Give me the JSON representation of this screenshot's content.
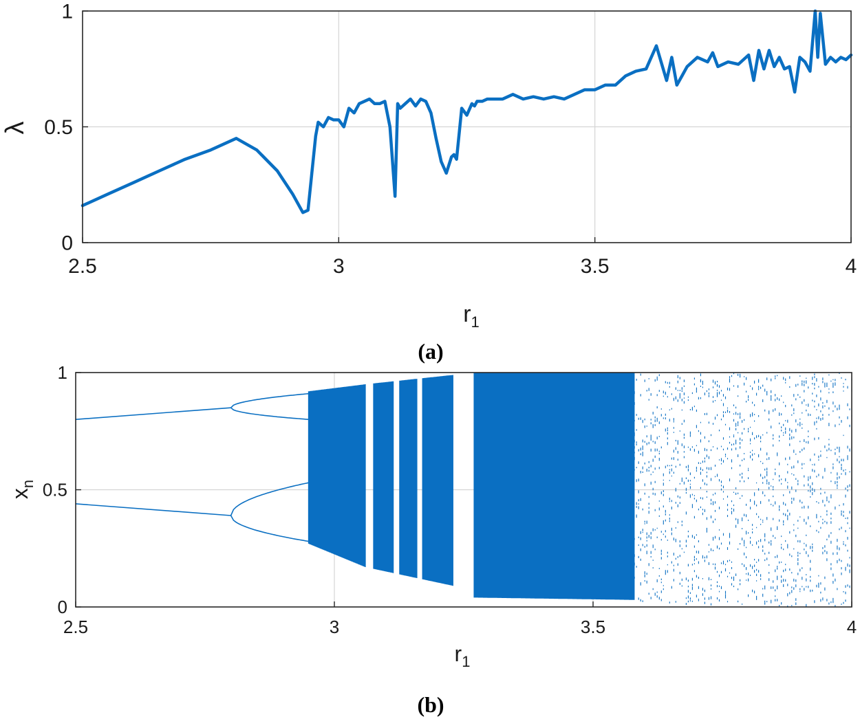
{
  "chart_data": [
    {
      "panel": "(a)",
      "type": "line",
      "xlabel": "r",
      "xlabel_sub": "1",
      "ylabel": "λ",
      "xlim": [
        2.5,
        4
      ],
      "ylim": [
        0,
        1
      ],
      "xticks": [
        2.5,
        3,
        3.5,
        4
      ],
      "xtick_labels": [
        "2.5",
        "3",
        "3.5",
        "4"
      ],
      "yticks": [
        0,
        0.5,
        1
      ],
      "ytick_labels": [
        "0",
        "0.5",
        "1"
      ],
      "grid": true,
      "color": "#0a6fc2",
      "series": [
        {
          "x": [
            2.5,
            2.55,
            2.6,
            2.65,
            2.7,
            2.75,
            2.8,
            2.84,
            2.88,
            2.91,
            2.93,
            2.94,
            2.955,
            2.96,
            2.97,
            2.98,
            2.99,
            3.0,
            3.01,
            3.02,
            3.03,
            3.04,
            3.05,
            3.06,
            3.07,
            3.08,
            3.09,
            3.1,
            3.11,
            3.115,
            3.12,
            3.13,
            3.14,
            3.15,
            3.16,
            3.17,
            3.18,
            3.19,
            3.2,
            3.21,
            3.22,
            3.225,
            3.23,
            3.24,
            3.25,
            3.26,
            3.265,
            3.27,
            3.28,
            3.29,
            3.3,
            3.32,
            3.34,
            3.36,
            3.38,
            3.4,
            3.42,
            3.44,
            3.46,
            3.48,
            3.5,
            3.52,
            3.54,
            3.56,
            3.58,
            3.6,
            3.62,
            3.64,
            3.65,
            3.66,
            3.67,
            3.68,
            3.7,
            3.72,
            3.73,
            3.74,
            3.76,
            3.78,
            3.8,
            3.81,
            3.82,
            3.83,
            3.84,
            3.85,
            3.86,
            3.87,
            3.88,
            3.89,
            3.9,
            3.91,
            3.92,
            3.93,
            3.935,
            3.94,
            3.95,
            3.96,
            3.97,
            3.98,
            3.99,
            4.0
          ],
          "y": [
            0.16,
            0.21,
            0.26,
            0.31,
            0.36,
            0.4,
            0.45,
            0.4,
            0.31,
            0.21,
            0.13,
            0.14,
            0.46,
            0.52,
            0.5,
            0.54,
            0.53,
            0.53,
            0.5,
            0.58,
            0.56,
            0.6,
            0.61,
            0.62,
            0.6,
            0.6,
            0.61,
            0.5,
            0.2,
            0.6,
            0.58,
            0.6,
            0.62,
            0.59,
            0.62,
            0.61,
            0.56,
            0.45,
            0.35,
            0.3,
            0.37,
            0.38,
            0.36,
            0.58,
            0.55,
            0.6,
            0.59,
            0.61,
            0.61,
            0.62,
            0.62,
            0.62,
            0.64,
            0.62,
            0.63,
            0.62,
            0.63,
            0.62,
            0.64,
            0.66,
            0.66,
            0.68,
            0.68,
            0.72,
            0.74,
            0.75,
            0.85,
            0.7,
            0.8,
            0.68,
            0.72,
            0.76,
            0.8,
            0.78,
            0.82,
            0.76,
            0.78,
            0.77,
            0.81,
            0.7,
            0.83,
            0.75,
            0.83,
            0.76,
            0.8,
            0.75,
            0.76,
            0.65,
            0.8,
            0.78,
            0.74,
            1.0,
            0.8,
            0.99,
            0.77,
            0.8,
            0.78,
            0.8,
            0.79,
            0.81
          ]
        }
      ]
    },
    {
      "panel": "(b)",
      "type": "scatter",
      "xlabel": "r",
      "xlabel_sub": "1",
      "ylabel": "x",
      "ylabel_sub": "n",
      "xlim": [
        2.5,
        4
      ],
      "ylim": [
        0,
        1
      ],
      "xticks": [
        2.5,
        3,
        3.5,
        4
      ],
      "xtick_labels": [
        "2.5",
        "3",
        "3.5",
        "4"
      ],
      "yticks": [
        0,
        0.5,
        1
      ],
      "ytick_labels": [
        "0",
        "0.5",
        "1"
      ],
      "grid": true,
      "color": "#0a6fc2",
      "stable_branches": [
        {
          "x": [
            2.5,
            2.8
          ],
          "y": [
            0.8,
            0.85
          ]
        },
        {
          "x": [
            2.5,
            2.8
          ],
          "y": [
            0.44,
            0.39
          ]
        }
      ],
      "chaotic_bands": [
        {
          "x": [
            2.95,
            3.06
          ],
          "upper": [
            0.92,
            0.95
          ],
          "lower": [
            0.27,
            0.17
          ]
        },
        {
          "x": [
            3.06,
            3.23
          ],
          "upper": [
            0.95,
            0.99
          ],
          "lower": [
            0.17,
            0.09
          ]
        },
        {
          "x": [
            3.27,
            3.58
          ],
          "upper": [
            1.0,
            1.0
          ],
          "lower": [
            0.04,
            0.03
          ]
        },
        {
          "x": [
            3.58,
            4.0
          ],
          "upper": [
            1.0,
            1.0
          ],
          "lower": [
            0.02,
            0.0
          ]
        }
      ]
    }
  ],
  "captions": {
    "a": "(a)",
    "b": "(b)"
  }
}
